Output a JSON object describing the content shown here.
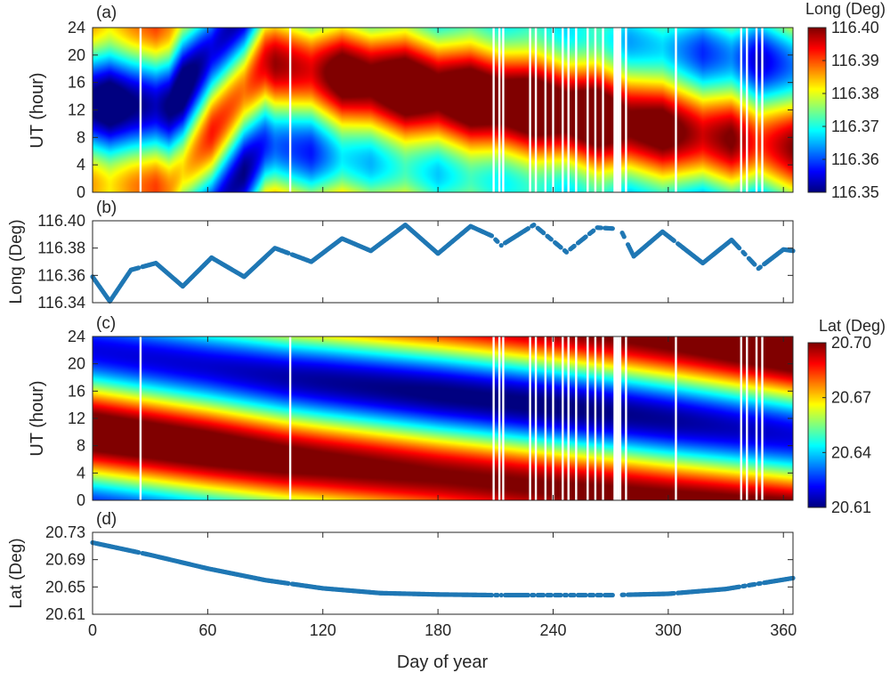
{
  "colors": {
    "axis": "#262626",
    "marker": "#1f77b4",
    "gap": "#ffffff"
  },
  "colormap": "jet",
  "gap_days": [
    25,
    103,
    209,
    212,
    214,
    228,
    231,
    236,
    240,
    245,
    248,
    252,
    258,
    262,
    266,
    272,
    273,
    274,
    275,
    278,
    304,
    338,
    341,
    346,
    349
  ],
  "xaxis": {
    "label": "Day of year",
    "range": [
      0,
      365
    ],
    "ticks": [
      0,
      60,
      120,
      180,
      240,
      300,
      360
    ]
  },
  "chart_data": [
    {
      "id": "a",
      "type": "heatmap",
      "panel_label": "(a)",
      "ylabel": "UT (hour)",
      "yticks": [
        0,
        4,
        8,
        12,
        16,
        20,
        24
      ],
      "ylim": [
        0,
        24
      ],
      "xlim": [
        0,
        365
      ],
      "colorbar": {
        "title": "Long (Deg)",
        "range": [
          116.35,
          116.4
        ],
        "ticks": [
          "116.40",
          "116.39",
          "116.38",
          "116.37",
          "116.36",
          "116.35"
        ]
      },
      "field": {
        "description_units": "Long (Deg)",
        "mean_nodes": [
          [
            0,
            116.367
          ],
          [
            9,
            116.363
          ],
          [
            20,
            116.368
          ],
          [
            33,
            116.372
          ],
          [
            47,
            116.364
          ],
          [
            62,
            116.374
          ],
          [
            79,
            116.369
          ],
          [
            95,
            116.38
          ],
          [
            114,
            116.376
          ],
          [
            130,
            116.387
          ],
          [
            145,
            116.384
          ],
          [
            163,
            116.391
          ],
          [
            180,
            116.385
          ],
          [
            197,
            116.391
          ],
          [
            213,
            116.387
          ],
          [
            230,
            116.391
          ],
          [
            247,
            116.386
          ],
          [
            263,
            116.391
          ],
          [
            280,
            116.383
          ],
          [
            297,
            116.386
          ],
          [
            318,
            116.377
          ],
          [
            333,
            116.382
          ],
          [
            347,
            116.372
          ],
          [
            365,
            116.381
          ]
        ],
        "amplitude": 0.019,
        "peak_ut_nodes": [
          [
            0,
            1.0
          ],
          [
            40,
            0.5
          ],
          [
            90,
            19.0
          ],
          [
            160,
            15.5
          ],
          [
            240,
            12.0
          ],
          [
            300,
            9.0
          ],
          [
            365,
            6.5
          ]
        ]
      }
    },
    {
      "id": "b",
      "type": "scatter",
      "panel_label": "(b)",
      "ylabel": "Long (Deg)",
      "ylim": [
        116.34,
        116.4
      ],
      "yticks": [
        "116.34",
        "116.36",
        "116.38",
        "116.40"
      ],
      "xlim": [
        0,
        365
      ],
      "nodes": [
        [
          0,
          116.359
        ],
        [
          9,
          116.341
        ],
        [
          20,
          116.364
        ],
        [
          33,
          116.369
        ],
        [
          47,
          116.352
        ],
        [
          62,
          116.373
        ],
        [
          79,
          116.359
        ],
        [
          95,
          116.38
        ],
        [
          114,
          116.37
        ],
        [
          130,
          116.387
        ],
        [
          145,
          116.378
        ],
        [
          163,
          116.397
        ],
        [
          180,
          116.376
        ],
        [
          197,
          116.396
        ],
        [
          208,
          116.389
        ],
        [
          213,
          116.382
        ],
        [
          230,
          116.397
        ],
        [
          247,
          116.377
        ],
        [
          263,
          116.395
        ],
        [
          275,
          116.394
        ],
        [
          282,
          116.374
        ],
        [
          297,
          116.392
        ],
        [
          318,
          116.369
        ],
        [
          333,
          116.386
        ],
        [
          347,
          116.365
        ],
        [
          360,
          116.379
        ],
        [
          365,
          116.378
        ]
      ]
    },
    {
      "id": "c",
      "type": "heatmap",
      "panel_label": "(c)",
      "ylabel": "UT (hour)",
      "yticks": [
        0,
        4,
        8,
        12,
        16,
        20,
        24
      ],
      "ylim": [
        0,
        24
      ],
      "xlim": [
        0,
        365
      ],
      "colorbar": {
        "title": "Lat (Deg)",
        "range": [
          20.61,
          20.7
        ],
        "ticks": [
          "20.70",
          "20.67",
          "20.64",
          "20.61"
        ]
      },
      "field": {
        "description_units": "Lat (Deg)",
        "mean_nodes": [
          [
            0,
            20.665
          ],
          [
            60,
            20.663
          ],
          [
            120,
            20.658
          ],
          [
            180,
            20.655
          ],
          [
            240,
            20.655
          ],
          [
            300,
            20.658
          ],
          [
            365,
            20.664
          ]
        ],
        "amplitude": 0.046,
        "peak_ut_nodes": [
          [
            0,
            10.0
          ],
          [
            100,
            6.0
          ],
          [
            200,
            3.0
          ],
          [
            280,
            0.5
          ],
          [
            365,
            -2.5
          ]
        ]
      }
    },
    {
      "id": "d",
      "type": "scatter",
      "panel_label": "(d)",
      "ylabel": "Lat (Deg)",
      "ylim": [
        20.61,
        20.73
      ],
      "yticks": [
        "20.61",
        "20.65",
        "20.69",
        "20.73"
      ],
      "xlim": [
        0,
        365
      ],
      "nodes": [
        [
          0,
          20.715
        ],
        [
          30,
          20.697
        ],
        [
          60,
          20.677
        ],
        [
          90,
          20.66
        ],
        [
          120,
          20.648
        ],
        [
          150,
          20.641
        ],
        [
          180,
          20.639
        ],
        [
          210,
          20.638
        ],
        [
          240,
          20.638
        ],
        [
          270,
          20.638
        ],
        [
          300,
          20.64
        ],
        [
          330,
          20.647
        ],
        [
          365,
          20.663
        ]
      ]
    }
  ]
}
